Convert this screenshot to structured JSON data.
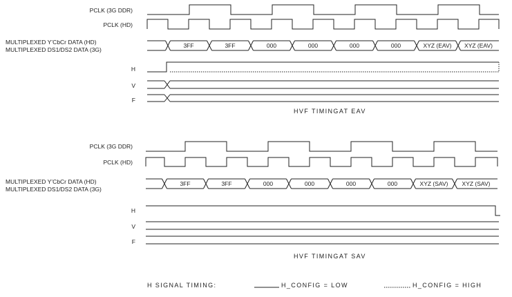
{
  "eav": {
    "pclk_3g_label": "PCLK (3G DDR)",
    "pclk_hd_label": "PCLK (HD)",
    "mux_ycbcr_label": "MULTIPLEXED Y’CbCr DATA (HD)",
    "mux_ds_label": "MULTIPLEXED DS1/DS2 DATA (3G)",
    "h_label": "H",
    "v_label": "V",
    "f_label": "F",
    "data_words": [
      "3FF",
      "3FF",
      "000",
      "000",
      "000",
      "000",
      "XYZ (EAV)",
      "XYZ (EAV)"
    ],
    "caption": "HVF TIMINGAT EAV"
  },
  "sav": {
    "pclk_3g_label": "PCLK (3G DDR)",
    "pclk_hd_label": "PCLK (HD)",
    "mux_ycbcr_label": "MULTIPLEXED Y’CbCr DATA (HD)",
    "mux_ds_label": "MULTIPLEXED DS1/DS2 DATA (3G)",
    "h_label": "H",
    "v_label": "V",
    "f_label": "F",
    "data_words": [
      "3FF",
      "3FF",
      "000",
      "000",
      "000",
      "000",
      "XYZ (SAV)",
      "XYZ (SAV)"
    ],
    "caption": "HVF TIMINGAT SAV"
  },
  "legend": {
    "title": "H SIGNAL TIMING:",
    "low_label": "H_CONFIG = LOW",
    "high_label": "H_CONFIG = HIGH"
  }
}
